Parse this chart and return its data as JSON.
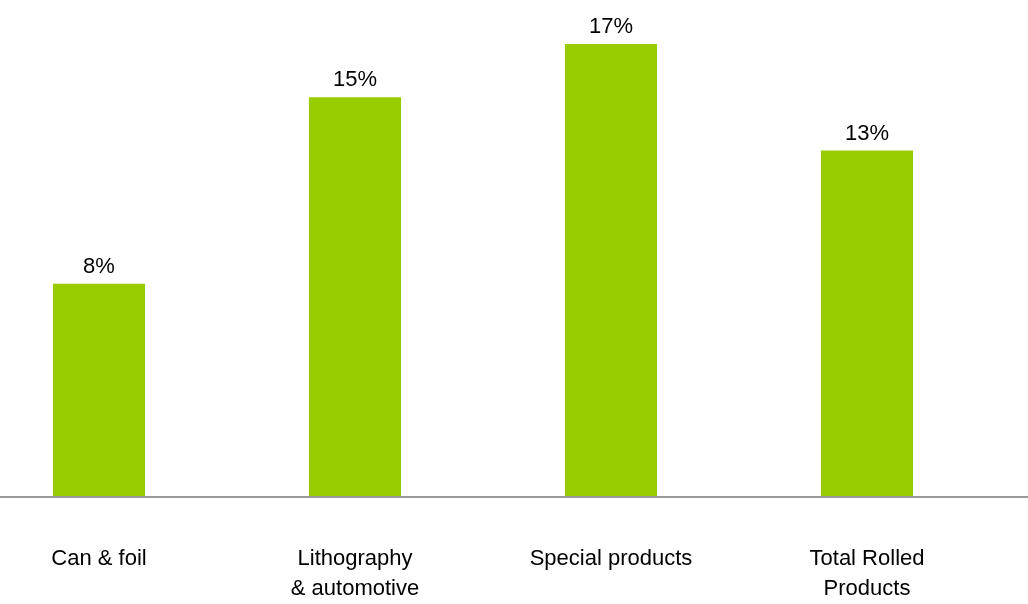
{
  "chart_data": {
    "type": "bar",
    "categories": [
      "Can & foil",
      "Lithography\n& automotive",
      "Special products",
      "Total Rolled\nProducts"
    ],
    "values": [
      8,
      15,
      17,
      13
    ],
    "value_labels": [
      "8%",
      "15%",
      "17%",
      "13%"
    ],
    "color": "#99cc00"
  }
}
